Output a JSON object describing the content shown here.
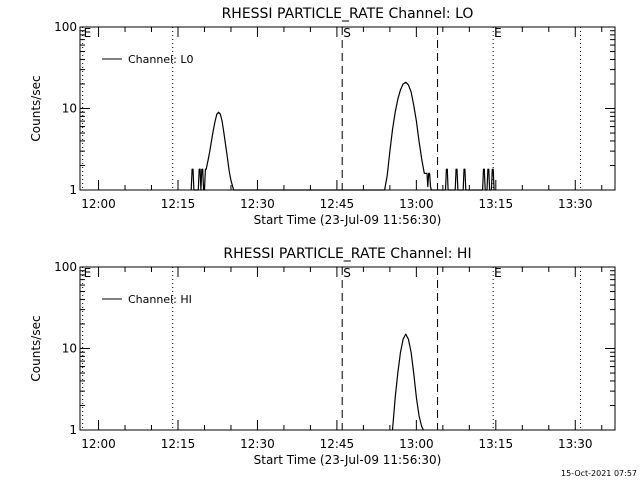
{
  "chart_data": [
    {
      "type": "line",
      "title": "RHESSI PARTICLE_RATE Channel: LO",
      "xlabel": "Start Time (23-Jul-09 11:56:30)",
      "ylabel": "Counts/sec",
      "y_scale": "log",
      "ylim": [
        1,
        100
      ],
      "xlim": [
        "11:56:30",
        "13:37:30"
      ],
      "x_ticks": [
        "12:00",
        "12:15",
        "12:30",
        "12:45",
        "13:00",
        "13:15",
        "13:30"
      ],
      "y_ticks": [
        "1",
        "10",
        "100"
      ],
      "legend": {
        "position": "top-left",
        "entries": [
          "Channel: L0"
        ]
      },
      "markers": [
        {
          "label": "E",
          "time": "11:57:00",
          "style": "dotted"
        },
        {
          "label": "",
          "time": "12:14:00",
          "style": "dotted"
        },
        {
          "label": "S",
          "time": "12:46:00",
          "style": "dashed"
        },
        {
          "label": "",
          "time": "13:04:00",
          "style": "dashed"
        },
        {
          "label": "E",
          "time": "13:14:30",
          "style": "dotted"
        },
        {
          "label": "",
          "time": "13:31:00",
          "style": "dotted"
        }
      ],
      "series": [
        {
          "name": "Channel: L0",
          "x": [
            "12:17:30",
            "12:17:40",
            "12:17:50",
            "12:18:00",
            "12:18:50",
            "12:19:00",
            "12:19:10",
            "12:19:20",
            "12:19:30",
            "12:19:40",
            "12:19:50",
            "12:20:00",
            "12:20:10",
            "12:20:20",
            "12:20:40",
            "12:21:00",
            "12:21:20",
            "12:21:40",
            "12:22:00",
            "12:22:20",
            "12:22:40",
            "12:23:00",
            "12:23:20",
            "12:23:40",
            "12:24:00",
            "12:24:20",
            "12:24:40",
            "12:25:00",
            "12:25:20",
            "12:25:30",
            "12:54:00",
            "12:54:30",
            "12:55:00",
            "12:55:30",
            "12:56:00",
            "12:56:30",
            "12:57:00",
            "12:57:30",
            "12:58:00",
            "12:58:30",
            "12:59:00",
            "12:59:30",
            "13:00:00",
            "13:00:30",
            "13:01:00",
            "13:01:30",
            "13:02:00",
            "13:02:10",
            "13:02:20",
            "13:02:30",
            "13:02:40",
            "13:02:50",
            "13:05:30",
            "13:05:40",
            "13:05:50",
            "13:06:00",
            "13:07:20",
            "13:07:30",
            "13:07:40",
            "13:07:50",
            "13:08:50",
            "13:09:00",
            "13:09:10",
            "13:09:20",
            "13:12:30",
            "13:12:40",
            "13:12:50",
            "13:13:00",
            "13:13:20",
            "13:13:30",
            "13:13:40",
            "13:13:50",
            "13:14:10",
            "13:14:20",
            "13:14:30",
            "13:14:40"
          ],
          "y": [
            1,
            1.8,
            1.8,
            1,
            1,
            1.8,
            1.8,
            1,
            1.8,
            1.8,
            1,
            1,
            1.8,
            1.8,
            2.3,
            3,
            4,
            5.4,
            7,
            8.5,
            9,
            8.5,
            7,
            5,
            3.5,
            2.5,
            1.7,
            1.3,
            1.1,
            1,
            1,
            1.5,
            3,
            5.5,
            9,
            13,
            17,
            20,
            21,
            19.5,
            16,
            11,
            7,
            4,
            2.4,
            1.6,
            1.6,
            1.1,
            1.6,
            1.6,
            1.1,
            1,
            1,
            1.8,
            1.8,
            1,
            1,
            1.8,
            1.8,
            1,
            1,
            1.8,
            1.8,
            1,
            1,
            1.8,
            1.8,
            1,
            1,
            1.8,
            1.8,
            1,
            1,
            1.8,
            1.8,
            1
          ]
        }
      ]
    },
    {
      "type": "line",
      "title": "RHESSI PARTICLE_RATE Channel: HI",
      "xlabel": "Start Time (23-Jul-09 11:56:30)",
      "ylabel": "Counts/sec",
      "y_scale": "log",
      "ylim": [
        1,
        100
      ],
      "xlim": [
        "11:56:30",
        "13:37:30"
      ],
      "x_ticks": [
        "12:00",
        "12:15",
        "12:30",
        "12:45",
        "13:00",
        "13:15",
        "13:30"
      ],
      "y_ticks": [
        "1",
        "10",
        "100"
      ],
      "legend": {
        "position": "top-left",
        "entries": [
          "Channel: HI"
        ]
      },
      "markers": [
        {
          "label": "E",
          "time": "11:57:00",
          "style": "dotted"
        },
        {
          "label": "",
          "time": "12:14:00",
          "style": "dotted"
        },
        {
          "label": "S",
          "time": "12:46:00",
          "style": "dashed"
        },
        {
          "label": "",
          "time": "13:04:00",
          "style": "dashed"
        },
        {
          "label": "E",
          "time": "13:14:30",
          "style": "dotted"
        },
        {
          "label": "",
          "time": "13:31:00",
          "style": "dotted"
        }
      ],
      "series": [
        {
          "name": "Channel: HI",
          "x": [
            "12:55:30",
            "12:56:00",
            "12:56:30",
            "12:57:00",
            "12:57:30",
            "12:58:00",
            "12:58:30",
            "12:59:00",
            "12:59:30",
            "13:00:00",
            "13:00:30",
            "13:01:00",
            "13:01:20"
          ],
          "y": [
            1,
            2.5,
            5,
            9,
            13,
            15,
            13,
            9,
            5,
            2.5,
            1.5,
            1.1,
            1
          ]
        }
      ]
    }
  ],
  "footer": {
    "timestamp": "15-Oct-2021 07:57"
  }
}
